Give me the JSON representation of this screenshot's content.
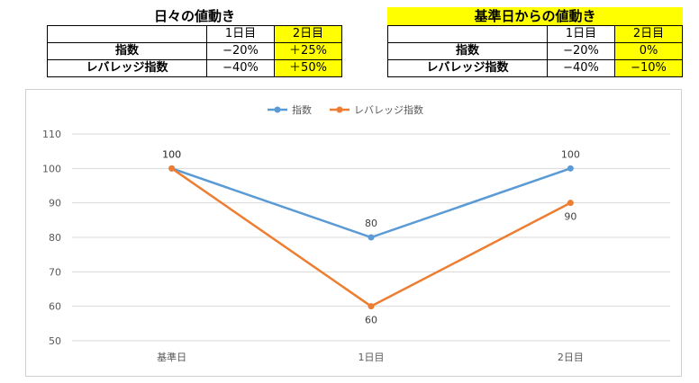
{
  "daily_table": {
    "title": "日々の値動き",
    "header": [
      "",
      "1日目",
      "2日目"
    ],
    "rows": [
      {
        "label": "指数",
        "day1": "−20%",
        "day2": "＋25%"
      },
      {
        "label": "レバレッジ指数",
        "day1": "−40%",
        "day2": "＋50%"
      }
    ]
  },
  "base_table": {
    "title": "基準日からの値動き",
    "header": [
      "",
      "1日目",
      "2日目"
    ],
    "rows": [
      {
        "label": "指数",
        "day1": "−20%",
        "day2": "0%"
      },
      {
        "label": "レバレッジ指数",
        "day1": "−40%",
        "day2": "−10%"
      }
    ]
  },
  "chart_data": {
    "type": "line",
    "categories": [
      "基準日",
      "1日目",
      "2日目"
    ],
    "series": [
      {
        "name": "指数",
        "values": [
          100,
          80,
          100
        ],
        "color": "#5b9bd5"
      },
      {
        "name": "レバレッジ指数",
        "values": [
          100,
          60,
          90
        ],
        "color": "#ed7d31"
      }
    ],
    "ylim": [
      50,
      110
    ],
    "yticks": [
      50,
      60,
      70,
      80,
      90,
      100,
      110
    ],
    "grid": true,
    "legend": "top-center",
    "gridline_color": "#d9d9d9",
    "axis_text_color": "#595959"
  }
}
